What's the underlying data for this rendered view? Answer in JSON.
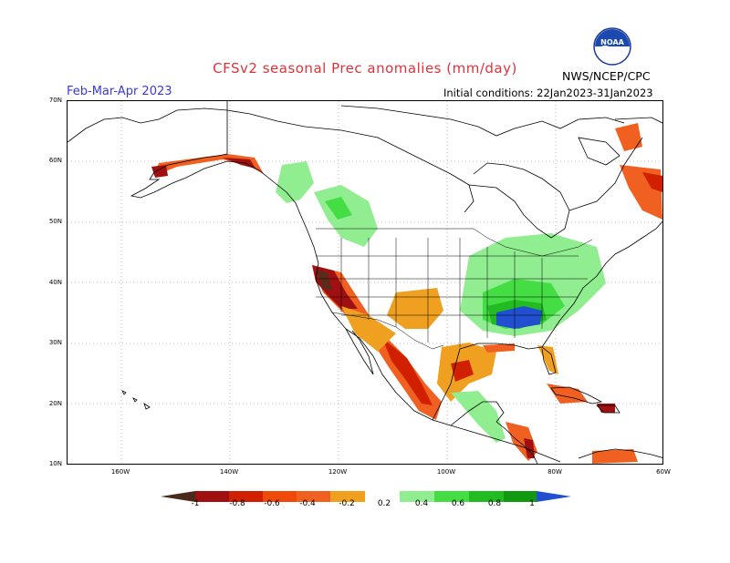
{
  "header": {
    "title": "CFSv2 seasonal Prec anomalies (mm/day)",
    "season": "Feb-Mar-Apr 2023",
    "initial_conditions": "Initial conditions: 22Jan2023-31Jan2023",
    "agency": "NWS/NCEP/CPC",
    "logo_text": "NOAA"
  },
  "axes": {
    "lat_labels": [
      "70N",
      "60N",
      "50N",
      "40N",
      "30N",
      "20N",
      "10N"
    ],
    "lon_labels": [
      "160W",
      "140W",
      "120W",
      "100W",
      "80W",
      "60W"
    ]
  },
  "colorbar": {
    "labels": [
      "-1",
      "-0.8",
      "-0.6",
      "-0.4",
      "-0.2",
      "0.2",
      "0.4",
      "0.6",
      "0.8",
      "1"
    ],
    "colors": [
      "#4a2a1a",
      "#a01010",
      "#d02000",
      "#f04a0a",
      "#f0a020",
      "#ffffff",
      "#90ee90",
      "#44dd44",
      "#22bb22",
      "#119911",
      "#2050d0"
    ]
  },
  "legend_colors": {
    "strong_dry": "#5a2a1a",
    "very_dry": "#b01010",
    "dry": "#e03010",
    "mod_dry": "#f06020",
    "slight_dry": "#f0a020",
    "slight_wet": "#90ee90",
    "mod_wet": "#44dd44",
    "wet": "#22bb22",
    "very_wet": "#119911",
    "strong_wet": "#2050d0"
  }
}
